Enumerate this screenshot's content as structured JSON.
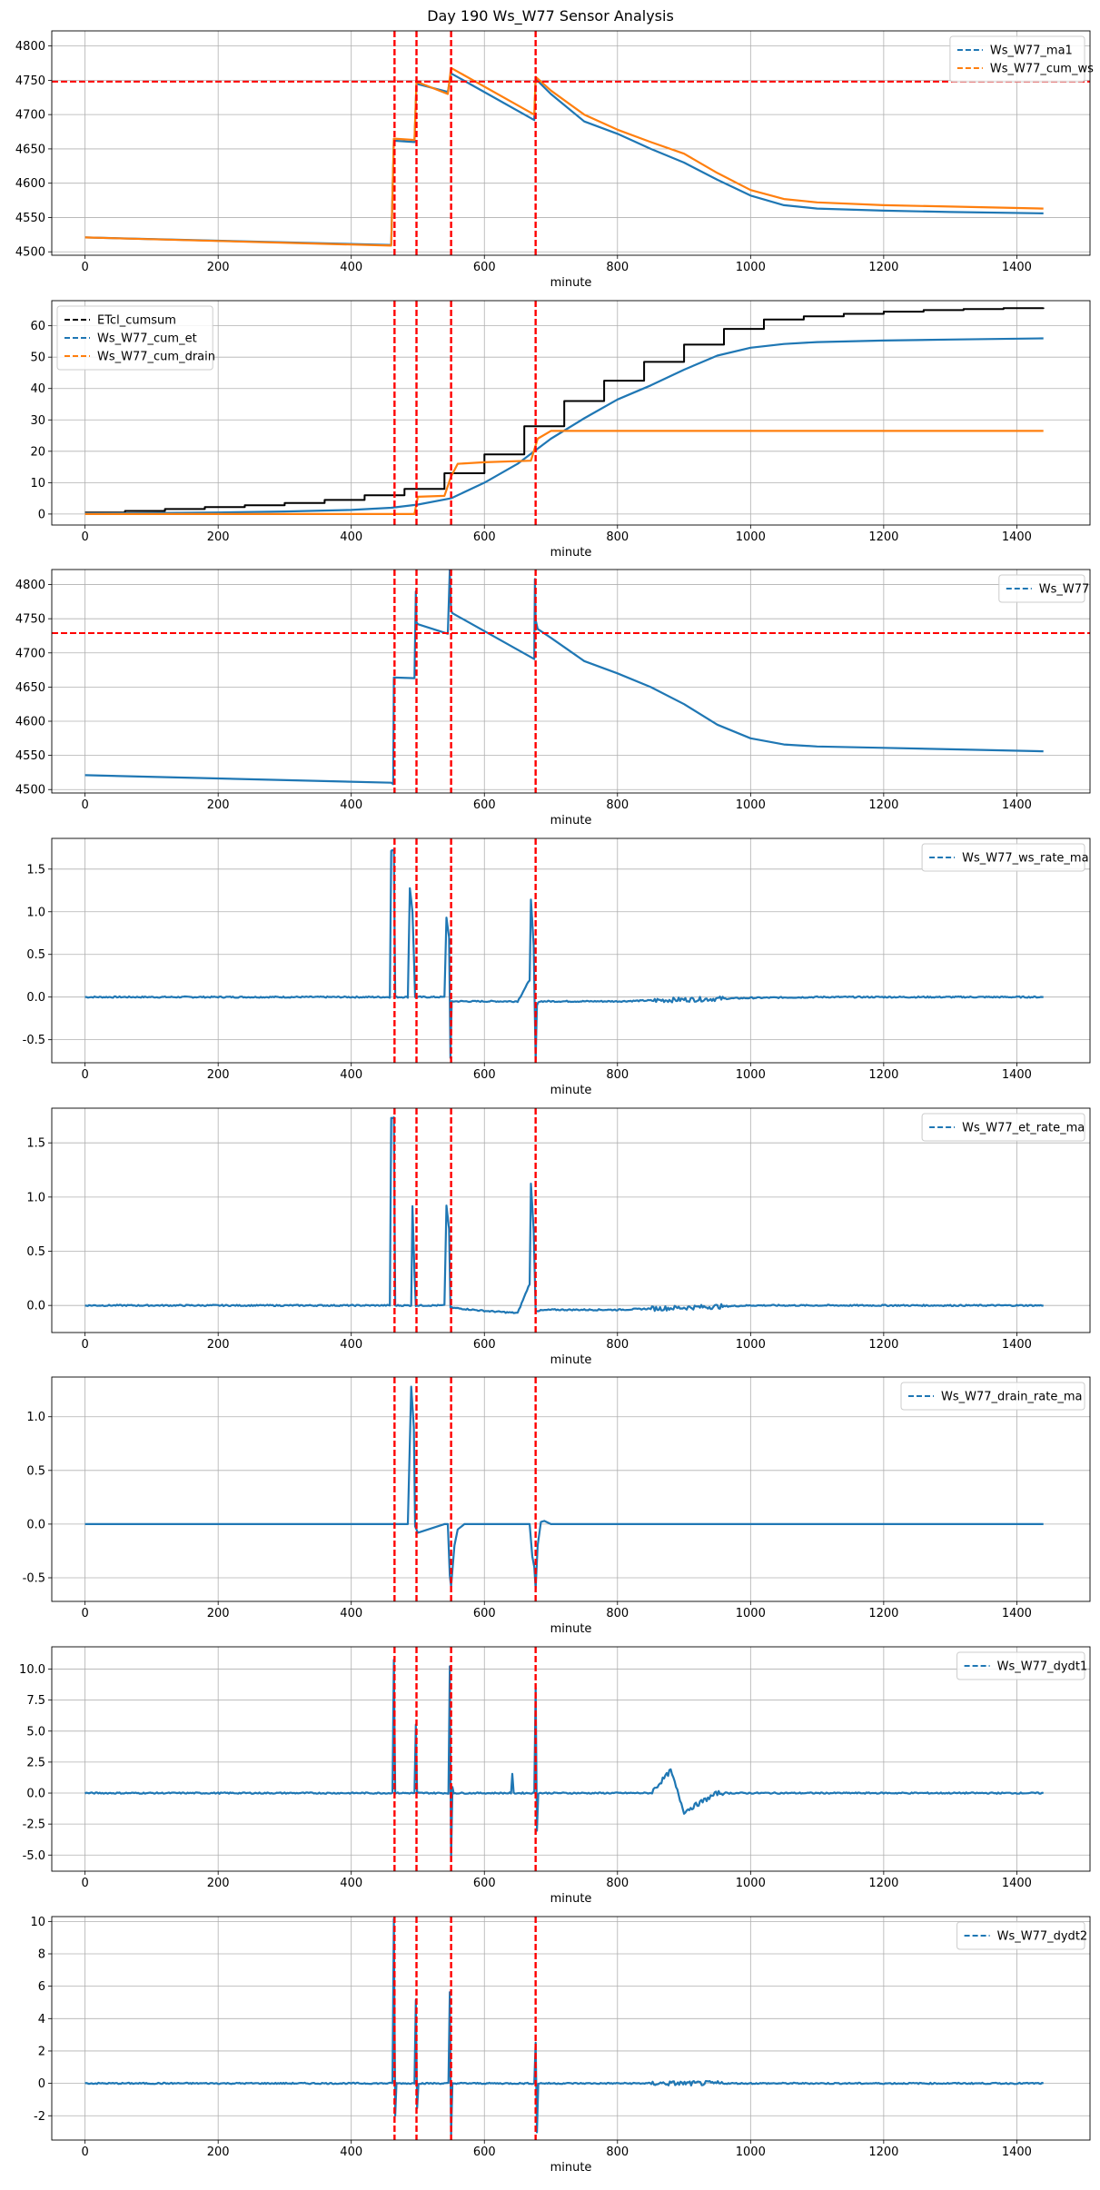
{
  "figure": {
    "title": "Day 190 Ws_W77 Sensor Analysis"
  },
  "colors": {
    "blue": "#1f77b4",
    "orange": "#ff7f0e",
    "black": "#000000",
    "red": "#ff0000",
    "grid": "#b0b0b0"
  },
  "event_lines": [
    465,
    498,
    550,
    677
  ],
  "chart_data": [
    {
      "id": "p1",
      "type": "line",
      "xlabel": "minute",
      "xlim": [
        -50,
        1510
      ],
      "ylim": [
        4495,
        4822
      ],
      "xticks": [
        0,
        200,
        400,
        600,
        800,
        1000,
        1200,
        1400
      ],
      "yticks": [
        4500,
        4550,
        4600,
        4650,
        4700,
        4750,
        4800
      ],
      "hline": 4748,
      "legend": "top-right",
      "series": [
        {
          "name": "Ws_W77_ma1",
          "color": "blue",
          "x": [
            0,
            460,
            464,
            495,
            498,
            545,
            550,
            675,
            677,
            700,
            750,
            800,
            850,
            900,
            950,
            1000,
            1050,
            1100,
            1200,
            1300,
            1440
          ],
          "y": [
            4521,
            4510,
            4662,
            4660,
            4745,
            4733,
            4760,
            4692,
            4752,
            4730,
            4690,
            4672,
            4650,
            4630,
            4605,
            4582,
            4568,
            4563,
            4560,
            4558,
            4556
          ]
        },
        {
          "name": "Ws_W77_cum_ws",
          "color": "orange",
          "x": [
            0,
            460,
            464,
            495,
            498,
            545,
            550,
            675,
            677,
            700,
            750,
            800,
            850,
            900,
            950,
            1000,
            1050,
            1100,
            1200,
            1300,
            1440
          ],
          "y": [
            4521,
            4509,
            4665,
            4663,
            4748,
            4730,
            4768,
            4700,
            4755,
            4735,
            4700,
            4678,
            4660,
            4643,
            4615,
            4590,
            4577,
            4572,
            4568,
            4566,
            4563
          ]
        }
      ]
    },
    {
      "id": "p2",
      "type": "line",
      "xlabel": "minute",
      "xlim": [
        -50,
        1510
      ],
      "ylim": [
        -3.5,
        68
      ],
      "xticks": [
        0,
        200,
        400,
        600,
        800,
        1000,
        1200,
        1400
      ],
      "yticks": [
        0,
        10,
        20,
        30,
        40,
        50,
        60
      ],
      "legend": "top-left",
      "series": [
        {
          "name": "ETcl_cumsum",
          "color": "black",
          "step": true,
          "x": [
            0,
            60,
            120,
            180,
            240,
            300,
            360,
            420,
            480,
            540,
            600,
            660,
            720,
            780,
            840,
            900,
            960,
            1020,
            1080,
            1140,
            1200,
            1260,
            1320,
            1380,
            1440
          ],
          "y": [
            0.5,
            1.0,
            1.6,
            2.2,
            2.8,
            3.5,
            4.5,
            6.0,
            8.0,
            13,
            19,
            28,
            36,
            42.5,
            48.5,
            54,
            59,
            62,
            63,
            63.8,
            64.5,
            65,
            65.3,
            65.6,
            65.8
          ]
        },
        {
          "name": "Ws_W77_cum_et",
          "color": "blue",
          "x": [
            0,
            100,
            200,
            300,
            400,
            460,
            500,
            550,
            600,
            650,
            700,
            750,
            800,
            850,
            900,
            950,
            1000,
            1050,
            1100,
            1200,
            1300,
            1440
          ],
          "y": [
            0.2,
            0.3,
            0.5,
            0.8,
            1.3,
            2.0,
            3.0,
            5.0,
            10,
            16,
            24,
            30.5,
            36.5,
            41,
            46,
            50.5,
            53,
            54.2,
            54.8,
            55.3,
            55.6,
            56
          ]
        },
        {
          "name": "Ws_W77_cum_drain",
          "color": "orange",
          "x": [
            0,
            495,
            500,
            540,
            550,
            560,
            600,
            670,
            680,
            700,
            1440
          ],
          "y": [
            0,
            0,
            5.5,
            5.8,
            12,
            16,
            16.5,
            17,
            24,
            26.5,
            26.5
          ]
        }
      ]
    },
    {
      "id": "p3",
      "type": "line",
      "xlabel": "minute",
      "xlim": [
        -50,
        1510
      ],
      "ylim": [
        4495,
        4822
      ],
      "xticks": [
        0,
        200,
        400,
        600,
        800,
        1000,
        1200,
        1400
      ],
      "yticks": [
        4500,
        4550,
        4600,
        4650,
        4700,
        4750,
        4800
      ],
      "hline": 4729,
      "legend": "top-right",
      "series": [
        {
          "name": "Ws_W77",
          "color": "blue",
          "x": [
            0,
            460,
            463,
            464,
            495,
            497,
            498,
            500,
            545,
            548,
            550,
            552,
            675,
            676,
            677,
            680,
            700,
            750,
            800,
            850,
            900,
            950,
            1000,
            1050,
            1100,
            1200,
            1300,
            1440
          ],
          "y": [
            4521,
            4510,
            4508,
            4664,
            4663,
            4790,
            4745,
            4742,
            4728,
            4822,
            4762,
            4758,
            4691,
            4808,
            4748,
            4735,
            4722,
            4688,
            4670,
            4650,
            4625,
            4595,
            4575,
            4566,
            4563,
            4561,
            4559,
            4556
          ]
        }
      ]
    },
    {
      "id": "p4",
      "type": "line",
      "xlabel": "minute",
      "xlim": [
        -50,
        1510
      ],
      "ylim": [
        -0.77,
        1.86
      ],
      "xticks": [
        0,
        200,
        400,
        600,
        800,
        1000,
        1200,
        1400
      ],
      "yticks": [
        -0.5,
        0.0,
        0.5,
        1.0,
        1.5
      ],
      "legend": "top-right",
      "series": [
        {
          "name": "Ws_W77_ws_rate_ma",
          "color": "blue",
          "noisy": true,
          "x": [
            0,
            458,
            460,
            464,
            466,
            485,
            488,
            492,
            496,
            540,
            543,
            547,
            549,
            551,
            553,
            600,
            650,
            668,
            670,
            674,
            677,
            679,
            682,
            700,
            800,
            850,
            900,
            950,
            1000,
            1100,
            1200,
            1440
          ],
          "y": [
            0,
            0,
            1.72,
            1.72,
            0,
            0,
            1.28,
            1.0,
            0,
            0,
            0.93,
            0.7,
            -0.72,
            -0.05,
            -0.05,
            -0.05,
            -0.05,
            0.2,
            1.15,
            0.6,
            -0.75,
            -0.1,
            -0.05,
            -0.05,
            -0.05,
            -0.04,
            -0.03,
            -0.02,
            -0.01,
            0,
            0,
            0
          ]
        }
      ]
    },
    {
      "id": "p5",
      "type": "line",
      "xlabel": "minute",
      "xlim": [
        -50,
        1510
      ],
      "ylim": [
        -0.25,
        1.82
      ],
      "xticks": [
        0,
        200,
        400,
        600,
        800,
        1000,
        1200,
        1400
      ],
      "yticks": [
        0.0,
        0.5,
        1.0,
        1.5
      ],
      "legend": "top-right",
      "series": [
        {
          "name": "Ws_W77_et_rate_ma",
          "color": "blue",
          "noisy": true,
          "x": [
            0,
            458,
            460,
            464,
            466,
            490,
            492,
            495,
            497,
            540,
            543,
            547,
            549,
            600,
            650,
            668,
            670,
            674,
            677,
            700,
            800,
            850,
            900,
            950,
            1000,
            1100,
            1200,
            1440
          ],
          "y": [
            0,
            0,
            1.73,
            1.73,
            0,
            0,
            0.92,
            0.3,
            0,
            0,
            0.92,
            0.7,
            -0.02,
            -0.05,
            -0.07,
            0.2,
            1.12,
            0.7,
            -0.05,
            -0.04,
            -0.04,
            -0.03,
            -0.02,
            -0.01,
            0,
            0,
            0,
            0
          ]
        }
      ]
    },
    {
      "id": "p6",
      "type": "line",
      "xlabel": "minute",
      "xlim": [
        -50,
        1510
      ],
      "ylim": [
        -0.72,
        1.37
      ],
      "xticks": [
        0,
        200,
        400,
        600,
        800,
        1000,
        1200,
        1400
      ],
      "yticks": [
        -0.5,
        0.0,
        0.5,
        1.0
      ],
      "legend": "top-right",
      "series": [
        {
          "name": "Ws_W77_drain_rate_ma",
          "color": "blue",
          "x": [
            0,
            485,
            490,
            494,
            496,
            500,
            540,
            545,
            548,
            550,
            555,
            560,
            570,
            668,
            672,
            675,
            677,
            680,
            685,
            690,
            700,
            1440
          ],
          "y": [
            0,
            0,
            1.28,
            0.9,
            -0.02,
            -0.08,
            0,
            0,
            -0.48,
            -0.58,
            -0.2,
            -0.05,
            0,
            0,
            -0.3,
            -0.4,
            -0.6,
            -0.2,
            0.02,
            0.03,
            0,
            0
          ]
        }
      ]
    },
    {
      "id": "p7",
      "type": "line",
      "xlabel": "minute",
      "xlim": [
        -50,
        1510
      ],
      "ylim": [
        -6.3,
        11.8
      ],
      "xticks": [
        0,
        200,
        400,
        600,
        800,
        1000,
        1200,
        1400
      ],
      "yticks": [
        -5.0,
        -2.5,
        0.0,
        2.5,
        5.0,
        7.5,
        10.0
      ],
      "legend": "top-right",
      "series": [
        {
          "name": "Ws_W77_dydt1",
          "color": "blue",
          "noisy": true,
          "x": [
            0,
            462,
            464,
            466,
            495,
            497,
            499,
            546,
            548,
            550,
            552,
            554,
            640,
            642,
            644,
            675,
            677,
            679,
            681,
            850,
            880,
            900,
            950,
            1440
          ],
          "y": [
            0,
            0,
            10.8,
            0,
            0,
            5.5,
            0,
            0,
            10.2,
            -5.5,
            0.5,
            0,
            0,
            1.5,
            0,
            0,
            8.5,
            -3.0,
            0,
            0,
            1.8,
            -1.5,
            0,
            0
          ]
        }
      ]
    },
    {
      "id": "p8",
      "type": "line",
      "xlabel": "minute",
      "xlim": [
        -50,
        1510
      ],
      "ylim": [
        -3.5,
        10.3
      ],
      "xticks": [
        0,
        200,
        400,
        600,
        800,
        1000,
        1200,
        1400
      ],
      "yticks": [
        -2,
        0,
        2,
        4,
        6,
        8,
        10
      ],
      "legend": "top-right",
      "series": [
        {
          "name": "Ws_W77_dydt2",
          "color": "blue",
          "noisy": true,
          "x": [
            0,
            462,
            464,
            466,
            468,
            495,
            497,
            499,
            501,
            546,
            548,
            550,
            552,
            675,
            677,
            679,
            681,
            1440
          ],
          "y": [
            0,
            0,
            10.2,
            -2.0,
            0,
            0,
            5.2,
            -1.5,
            0,
            0,
            5.6,
            -3.2,
            0,
            0,
            2.5,
            -3.0,
            0,
            0
          ]
        }
      ]
    }
  ]
}
